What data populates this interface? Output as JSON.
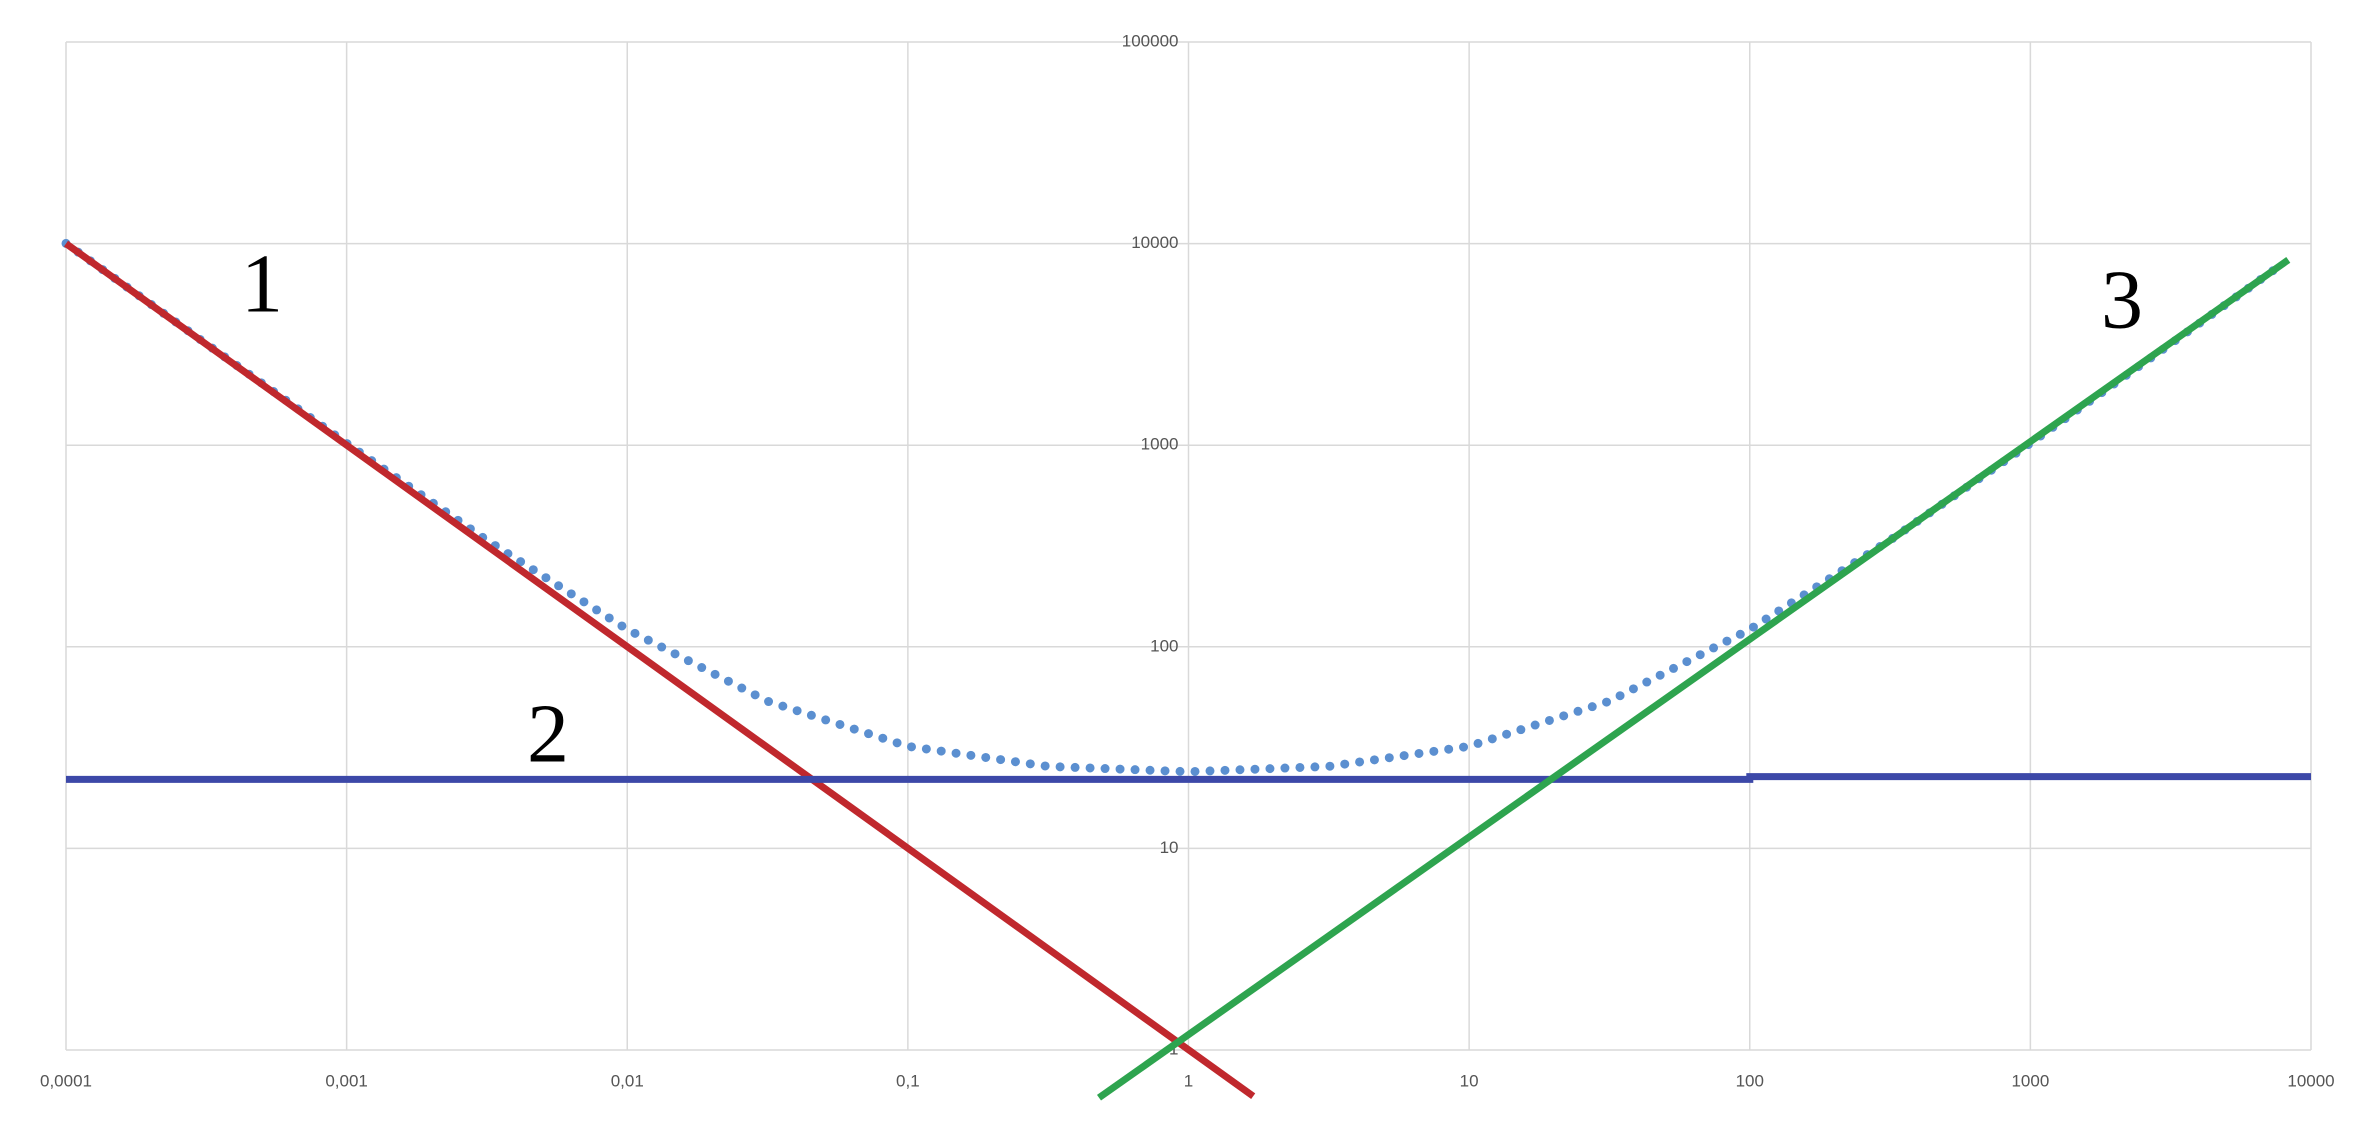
{
  "chart_data": {
    "type": "line",
    "xscale": "log",
    "yscale": "log",
    "grid": true,
    "xlim": [
      0.0001,
      10000
    ],
    "ylim": [
      1,
      100000
    ],
    "xticks": [
      {
        "value": 0.0001,
        "label": "0,0001"
      },
      {
        "value": 0.001,
        "label": "0,001"
      },
      {
        "value": 0.01,
        "label": "0,01"
      },
      {
        "value": 0.1,
        "label": "0,1"
      },
      1,
      10,
      100,
      1000,
      10000
    ],
    "yticks": [
      1,
      10,
      100,
      1000,
      10000,
      100000
    ],
    "series": [
      {
        "color": "#5b8fd0",
        "style": "dotted",
        "x": [
          0.0001,
          0.000316,
          0.001,
          0.00316,
          0.01,
          0.0316,
          0.1,
          0.316,
          1,
          3.16,
          10,
          31.6,
          100,
          316,
          1000,
          3162,
          8000
        ],
        "values": [
          10022,
          3184,
          1022,
          338,
          122,
          53.7,
          32.1,
          25.5,
          24,
          25.5,
          32.1,
          53.7,
          122,
          338,
          1023,
          3184,
          8022
        ]
      },
      {
        "color": "#c0282d",
        "style": "solid",
        "x": [
          0.0001,
          1.7
        ],
        "values": [
          10000,
          0.59
        ]
      },
      {
        "color": "#3c48a8",
        "style": "solid",
        "x": [
          0.0001,
          100,
          100,
          10000
        ],
        "values": [
          22,
          22,
          22.7,
          22.7
        ]
      },
      {
        "color": "#2ea44f",
        "style": "solid",
        "x": [
          0.48,
          8300
        ],
        "values": [
          0.58,
          8300
        ]
      }
    ],
    "annotations": [
      "1",
      "2",
      "3"
    ]
  }
}
